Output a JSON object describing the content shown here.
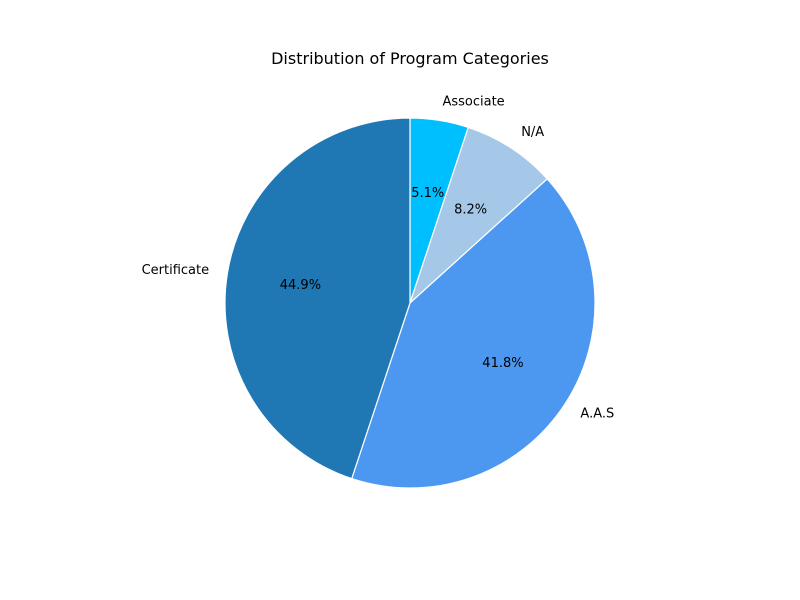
{
  "chart_data": {
    "type": "pie",
    "title": "Distribution of Program Categories",
    "slices": [
      {
        "label": "Associate",
        "value": 5.1,
        "pct_text": "5.1%",
        "color": "#00BFFF"
      },
      {
        "label": "N/A",
        "value": 8.2,
        "pct_text": "8.2%",
        "color": "#A6C8E8"
      },
      {
        "label": "A.A.S",
        "value": 41.8,
        "pct_text": "41.8%",
        "color": "#4C98F0"
      },
      {
        "label": "Certificate",
        "value": 44.9,
        "pct_text": "44.9%",
        "color": "#1F77B4"
      }
    ],
    "start_angle": "top",
    "direction": "clockwise",
    "slice_edge_color": "#ffffff",
    "legend": "none"
  }
}
